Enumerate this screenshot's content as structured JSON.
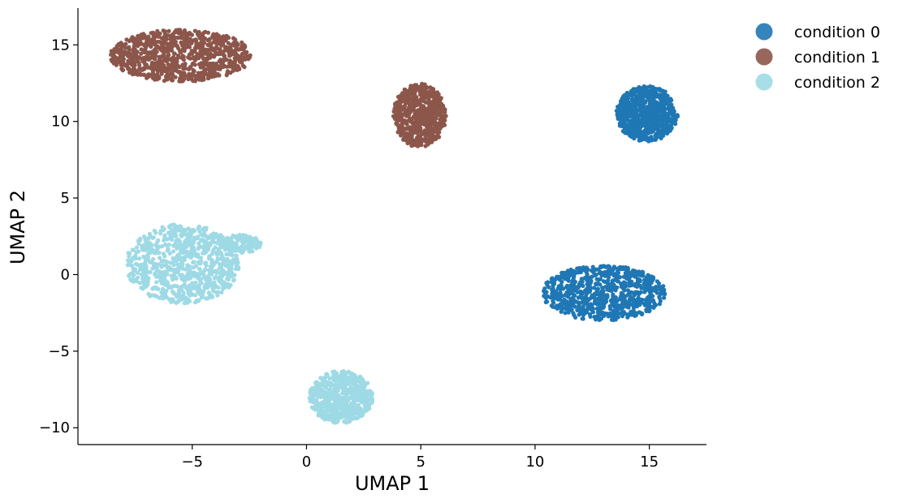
{
  "chart_data": {
    "type": "scatter",
    "title": "",
    "xlabel": "UMAP 1",
    "ylabel": "UMAP 2",
    "xlim": [
      -10,
      17.5
    ],
    "ylim": [
      -11.1,
      17.4
    ],
    "xticks": [
      -5,
      0,
      5,
      10,
      15
    ],
    "yticks": [
      -10,
      -5,
      0,
      5,
      10,
      15
    ],
    "xtick_labels": [
      "−5",
      "0",
      "5",
      "10",
      "15"
    ],
    "ytick_labels": [
      "−10",
      "−5",
      "0",
      "5",
      "10",
      "15"
    ],
    "grid": false,
    "legend_position": "outside-top-right",
    "series": [
      {
        "name": "condition 0",
        "color": "#1f77b4",
        "clusters": [
          {
            "center": [
              14.9,
              10.5
            ],
            "radius": [
              1.35,
              1.8
            ],
            "count": 700
          },
          {
            "center": [
              13.0,
              -1.2
            ],
            "radius": [
              2.7,
              1.8
            ],
            "count": 800
          }
        ]
      },
      {
        "name": "condition 1",
        "color": "#8c564b",
        "clusters": [
          {
            "center": [
              -5.5,
              14.3
            ],
            "radius": [
              3.1,
              1.7
            ],
            "count": 900
          },
          {
            "center": [
              4.95,
              10.4
            ],
            "radius": [
              1.15,
              2.1
            ],
            "count": 600
          }
        ]
      },
      {
        "name": "condition 2",
        "color": "#9edae5",
        "clusters": [
          {
            "center": [
              -5.4,
              0.7
            ],
            "radius": [
              2.5,
              2.6
            ],
            "count": 800
          },
          {
            "center": [
              -2.9,
              2.0
            ],
            "radius": [
              0.9,
              0.6
            ],
            "count": 150
          },
          {
            "center": [
              1.5,
              -8.0
            ],
            "radius": [
              1.4,
              1.7
            ],
            "count": 600
          }
        ]
      }
    ]
  }
}
